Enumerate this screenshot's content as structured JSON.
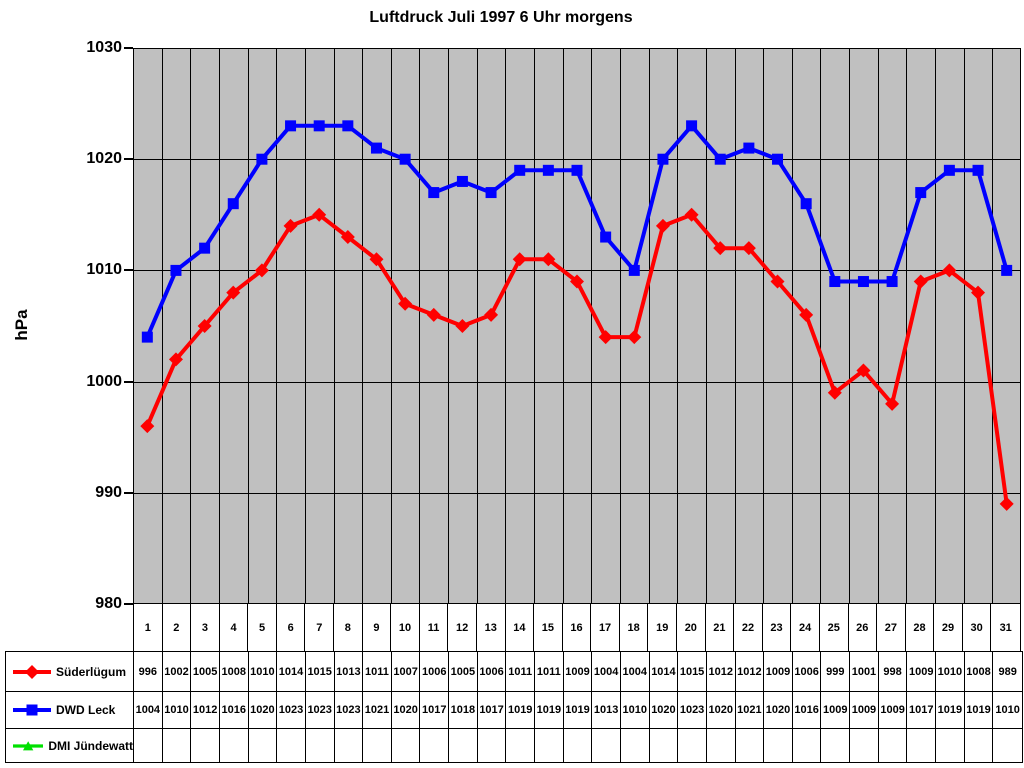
{
  "chart_data": {
    "type": "line",
    "title": "Luftdruck Juli 1997 6 Uhr morgens",
    "ylabel": "hPa",
    "ylim": [
      980,
      1030
    ],
    "ytick_step": 10,
    "yticks": [
      "1030",
      "1020",
      "1010",
      "1000",
      "990",
      "980"
    ],
    "grid": true,
    "plot_background": "#c0c0c0",
    "gridline_color": "#000000",
    "legend_position": "table-left",
    "categories": [
      "1",
      "2",
      "3",
      "4",
      "5",
      "6",
      "7",
      "8",
      "9",
      "10",
      "11",
      "12",
      "13",
      "14",
      "15",
      "16",
      "17",
      "18",
      "19",
      "20",
      "21",
      "22",
      "23",
      "24",
      "25",
      "26",
      "27",
      "28",
      "29",
      "30",
      "31"
    ],
    "series": [
      {
        "name": "Süderlügum",
        "color": "#ff0000",
        "marker": "diamond",
        "values": [
          996,
          1002,
          1005,
          1008,
          1010,
          1014,
          1015,
          1013,
          1011,
          1007,
          1006,
          1005,
          1006,
          1011,
          1011,
          1009,
          1004,
          1004,
          1014,
          1015,
          1012,
          1012,
          1009,
          1006,
          999,
          1001,
          998,
          1009,
          1010,
          1008,
          989
        ]
      },
      {
        "name": "DWD Leck",
        "color": "#0000ff",
        "marker": "square",
        "values": [
          1004,
          1010,
          1012,
          1016,
          1020,
          1023,
          1023,
          1023,
          1021,
          1020,
          1017,
          1018,
          1017,
          1019,
          1019,
          1019,
          1013,
          1010,
          1020,
          1023,
          1020,
          1021,
          1020,
          1016,
          1009,
          1009,
          1009,
          1017,
          1019,
          1019,
          1010
        ]
      },
      {
        "name": "DMI Jündewatt",
        "color": "#00e000",
        "marker": "triangle",
        "values": []
      }
    ]
  }
}
